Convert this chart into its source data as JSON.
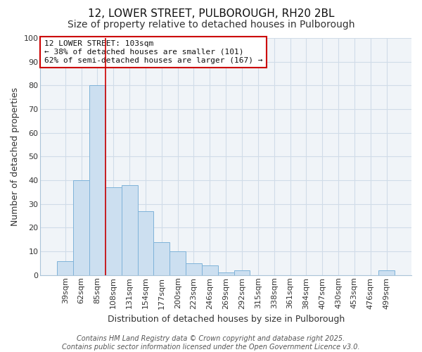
{
  "title": "12, LOWER STREET, PULBOROUGH, RH20 2BL",
  "subtitle": "Size of property relative to detached houses in Pulborough",
  "xlabel": "Distribution of detached houses by size in Pulborough",
  "ylabel": "Number of detached properties",
  "categories": [
    "39sqm",
    "62sqm",
    "85sqm",
    "108sqm",
    "131sqm",
    "154sqm",
    "177sqm",
    "200sqm",
    "223sqm",
    "246sqm",
    "269sqm",
    "292sqm",
    "315sqm",
    "338sqm",
    "361sqm",
    "384sqm",
    "407sqm",
    "430sqm",
    "453sqm",
    "476sqm",
    "499sqm"
  ],
  "values": [
    6,
    40,
    80,
    37,
    38,
    27,
    14,
    10,
    5,
    4,
    1,
    2,
    0,
    0,
    0,
    0,
    0,
    0,
    0,
    0,
    2
  ],
  "bar_color": "#ccdff0",
  "bar_edge_color": "#7fb3d9",
  "background_color": "#ffffff",
  "plot_bg_color": "#f0f4f8",
  "grid_color": "#d8e4f0",
  "vline_x": 3.0,
  "vline_color": "#cc0000",
  "annotation_text": "12 LOWER STREET: 103sqm\n← 38% of detached houses are smaller (101)\n62% of semi-detached houses are larger (167) →",
  "annotation_box_color": "#ffffff",
  "annotation_box_edge": "#cc0000",
  "ylim": [
    0,
    100
  ],
  "footer_line1": "Contains HM Land Registry data © Crown copyright and database right 2025.",
  "footer_line2": "Contains public sector information licensed under the Open Government Licence v3.0.",
  "title_fontsize": 11,
  "subtitle_fontsize": 10,
  "xlabel_fontsize": 9,
  "ylabel_fontsize": 9,
  "tick_fontsize": 8,
  "annot_fontsize": 8,
  "footer_fontsize": 7
}
